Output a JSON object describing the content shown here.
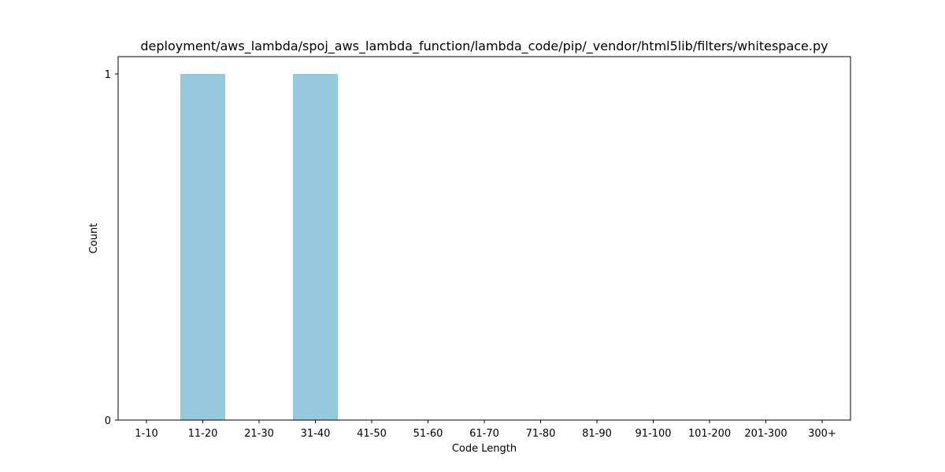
{
  "chart_data": {
    "type": "bar",
    "title": "deployment/aws_lambda/spoj_aws_lambda_function/lambda_code/pip/_vendor/html5lib/filters/whitespace.py",
    "xlabel": "Code Length",
    "ylabel": "Count",
    "categories": [
      "1-10",
      "11-20",
      "21-30",
      "31-40",
      "41-50",
      "51-60",
      "61-70",
      "71-80",
      "81-90",
      "91-100",
      "101-200",
      "201-300",
      "300+"
    ],
    "values": [
      0,
      1,
      0,
      1,
      0,
      0,
      0,
      0,
      0,
      0,
      0,
      0,
      0
    ],
    "ylim": [
      0,
      1
    ],
    "yticks": [
      0,
      1
    ],
    "grid": false,
    "bar_color": "#96c9de"
  }
}
